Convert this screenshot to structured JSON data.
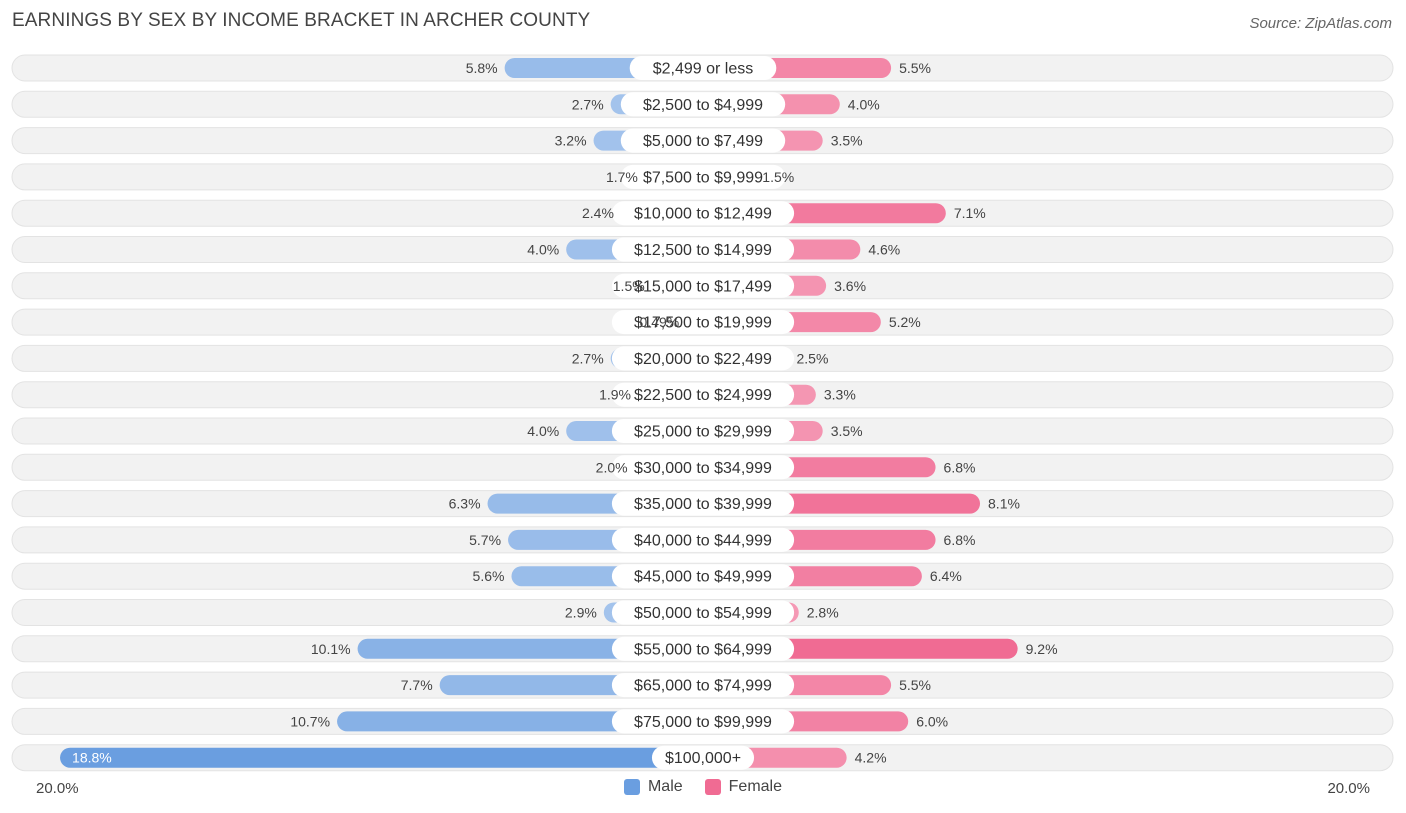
{
  "title": "EARNINGS BY SEX BY INCOME BRACKET IN ARCHER COUNTY",
  "source": "Source: ZipAtlas.com",
  "colors": {
    "male": "#7aa9e0",
    "male_strong": "#6a9ee0",
    "female": "#f48aaa",
    "female_strong": "#f06b93",
    "track": "#f2f2f2"
  },
  "legend": {
    "male_label": "Male",
    "female_label": "Female"
  },
  "axis": {
    "left_label": "20.0%",
    "right_label": "20.0%"
  },
  "chart_data": {
    "type": "bar",
    "orientation": "horizontal-diverging",
    "title": "EARNINGS BY SEX BY INCOME BRACKET IN ARCHER COUNTY",
    "categories": [
      "$2,499 or less",
      "$2,500 to $4,999",
      "$5,000 to $7,499",
      "$7,500 to $9,999",
      "$10,000 to $12,499",
      "$12,500 to $14,999",
      "$15,000 to $17,499",
      "$17,500 to $19,999",
      "$20,000 to $22,499",
      "$22,500 to $24,999",
      "$25,000 to $29,999",
      "$30,000 to $34,999",
      "$35,000 to $39,999",
      "$40,000 to $44,999",
      "$45,000 to $49,999",
      "$50,000 to $54,999",
      "$55,000 to $64,999",
      "$65,000 to $74,999",
      "$75,000 to $99,999",
      "$100,000+"
    ],
    "series": [
      {
        "name": "Male",
        "values": [
          5.8,
          2.7,
          3.2,
          1.7,
          2.4,
          4.0,
          1.5,
          0.49,
          2.7,
          1.9,
          4.0,
          2.0,
          6.3,
          5.7,
          5.6,
          2.9,
          10.1,
          7.7,
          10.7,
          18.8
        ],
        "labels": [
          "5.8%",
          "2.7%",
          "3.2%",
          "1.7%",
          "2.4%",
          "4.0%",
          "1.5%",
          "0.49%",
          "2.7%",
          "1.9%",
          "4.0%",
          "2.0%",
          "6.3%",
          "5.7%",
          "5.6%",
          "2.9%",
          "10.1%",
          "7.7%",
          "10.7%",
          "18.8%"
        ]
      },
      {
        "name": "Female",
        "values": [
          5.5,
          4.0,
          3.5,
          1.5,
          7.1,
          4.6,
          3.6,
          5.2,
          2.5,
          3.3,
          3.5,
          6.8,
          8.1,
          6.8,
          6.4,
          2.8,
          9.2,
          5.5,
          6.0,
          4.2
        ],
        "labels": [
          "5.5%",
          "4.0%",
          "3.5%",
          "1.5%",
          "7.1%",
          "4.6%",
          "3.6%",
          "5.2%",
          "2.5%",
          "3.3%",
          "3.5%",
          "6.8%",
          "8.1%",
          "6.8%",
          "6.4%",
          "2.8%",
          "9.2%",
          "5.5%",
          "6.0%",
          "4.2%"
        ]
      }
    ],
    "xlim": [
      -20,
      20
    ],
    "xlabel": "",
    "ylabel": "",
    "legend_position": "bottom-center"
  }
}
